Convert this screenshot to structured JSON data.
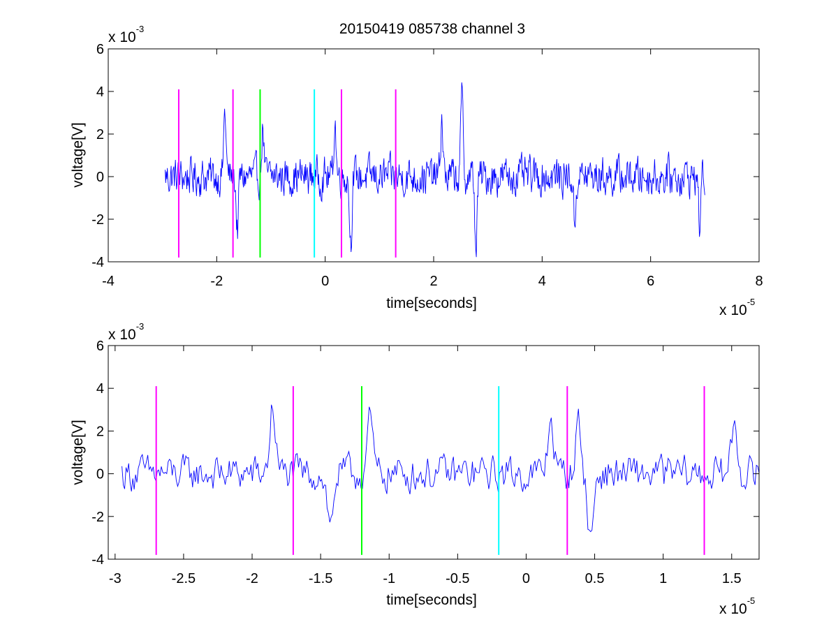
{
  "chart_data": [
    {
      "type": "line",
      "title": "20150419 085738 channel 3",
      "xlabel": "time[seconds]",
      "ylabel": "voltage[V]",
      "xlim": [
        -4,
        8
      ],
      "ylim": [
        -4,
        6
      ],
      "x_ticks": [
        -4,
        -2,
        0,
        2,
        4,
        6,
        8
      ],
      "y_ticks": [
        -4,
        -2,
        0,
        2,
        4,
        6
      ],
      "x_tick_labels": [
        "-4",
        "-2",
        "0",
        "2",
        "4",
        "6",
        "8"
      ],
      "y_tick_labels": [
        "-4",
        "-2",
        "0",
        "2",
        "4",
        "6"
      ],
      "x_exponent": {
        "base": "x 10",
        "power": "-5"
      },
      "y_exponent": {
        "base": "x 10",
        "power": "-3"
      },
      "grid": false,
      "signal": {
        "color": "#0000ff",
        "x_start": -2.95,
        "x_end": 7.0,
        "points": 1000,
        "noise_amplitude": 0.75,
        "peaks": [
          {
            "x": -1.85,
            "y": 3.1
          },
          {
            "x": -1.62,
            "y": -2.5
          },
          {
            "x": -1.15,
            "y": 2.3
          },
          {
            "x": 0.18,
            "y": 2.6
          },
          {
            "x": 0.47,
            "y": -3.1
          },
          {
            "x": 2.15,
            "y": 2.7
          },
          {
            "x": 2.52,
            "y": 3.75
          },
          {
            "x": 2.78,
            "y": -3.35
          },
          {
            "x": 4.6,
            "y": -2.3
          },
          {
            "x": 6.9,
            "y": -2.1
          }
        ]
      },
      "markers": [
        {
          "x": -2.7,
          "color": "#ff00ff",
          "y_from": -3.8,
          "y_to": 4.1
        },
        {
          "x": -1.7,
          "color": "#ff00ff",
          "y_from": -3.8,
          "y_to": 4.1
        },
        {
          "x": -1.2,
          "color": "#00ff00",
          "y_from": -3.8,
          "y_to": 4.1
        },
        {
          "x": -0.2,
          "color": "#00ffff",
          "y_from": -3.8,
          "y_to": 4.1
        },
        {
          "x": 0.3,
          "color": "#ff00ff",
          "y_from": -3.8,
          "y_to": 4.1
        },
        {
          "x": 1.3,
          "color": "#ff00ff",
          "y_from": -3.8,
          "y_to": 4.1
        }
      ]
    },
    {
      "type": "line",
      "title": "",
      "xlabel": "time[seconds]",
      "ylabel": "voltage[V]",
      "xlim": [
        -3.05,
        1.7
      ],
      "ylim": [
        -4,
        6
      ],
      "x_ticks": [
        -3,
        -2.5,
        -2,
        -1.5,
        -1,
        -0.5,
        0,
        0.5,
        1,
        1.5
      ],
      "y_ticks": [
        -4,
        -2,
        0,
        2,
        4,
        6
      ],
      "x_tick_labels": [
        "-3",
        "-2.5",
        "-2",
        "-1.5",
        "-1",
        "-0.5",
        "0",
        "0.5",
        "1",
        "1.5"
      ],
      "y_tick_labels": [
        "-4",
        "-2",
        "0",
        "2",
        "4",
        "6"
      ],
      "x_exponent": {
        "base": "x 10",
        "power": "-5"
      },
      "y_exponent": {
        "base": "x 10",
        "power": "-3"
      },
      "grid": false,
      "signal": {
        "color": "#0000ff",
        "x_start": -2.95,
        "x_end": 1.7,
        "points": 470,
        "noise_amplitude": 0.7,
        "peaks": [
          {
            "x": -1.85,
            "y": 3.1
          },
          {
            "x": -1.43,
            "y": -2.5
          },
          {
            "x": -1.14,
            "y": 2.4
          },
          {
            "x": 0.18,
            "y": 2.6
          },
          {
            "x": 0.38,
            "y": 2.3
          },
          {
            "x": 0.47,
            "y": -3.1
          },
          {
            "x": 1.52,
            "y": 2.4
          }
        ]
      },
      "markers": [
        {
          "x": -2.7,
          "color": "#ff00ff",
          "y_from": -3.8,
          "y_to": 4.1
        },
        {
          "x": -1.7,
          "color": "#ff00ff",
          "y_from": -3.8,
          "y_to": 4.1
        },
        {
          "x": -1.2,
          "color": "#00ff00",
          "y_from": -3.8,
          "y_to": 4.1
        },
        {
          "x": -0.2,
          "color": "#00ffff",
          "y_from": -3.8,
          "y_to": 4.1
        },
        {
          "x": 0.3,
          "color": "#ff00ff",
          "y_from": -3.8,
          "y_to": 4.1
        },
        {
          "x": 1.3,
          "color": "#ff00ff",
          "y_from": -3.8,
          "y_to": 4.1
        }
      ]
    }
  ]
}
